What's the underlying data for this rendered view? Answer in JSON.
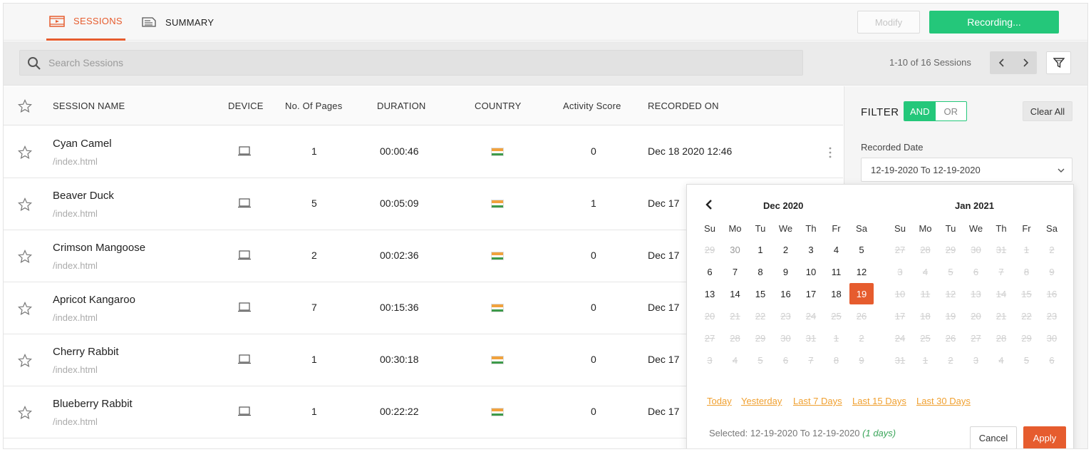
{
  "tabs": [
    {
      "label": "SESSIONS",
      "icon": "video-icon",
      "active": true
    },
    {
      "label": "SUMMARY",
      "icon": "document-icon",
      "active": false
    }
  ],
  "toolbar": {
    "modify_label": "Modify",
    "recording_label": "Recording..."
  },
  "search": {
    "placeholder": "Search Sessions"
  },
  "pagination": {
    "count_text": "1-10 of 16 Sessions",
    "prev": "‹",
    "next": "›"
  },
  "table": {
    "headers": {
      "name": "SESSION NAME",
      "device": "DEVICE",
      "pages": "No. Of Pages",
      "duration": "DURATION",
      "country": "COUNTRY",
      "score": "Activity Score",
      "recorded": "RECORDED ON"
    },
    "rows": [
      {
        "name": "Cyan Camel",
        "path": "/index.html",
        "pages": "1",
        "duration": "00:00:46",
        "score": "0",
        "recorded": "Dec 18 2020 12:46"
      },
      {
        "name": "Beaver Duck",
        "path": "/index.html",
        "pages": "5",
        "duration": "00:05:09",
        "score": "1",
        "recorded": "Dec 17"
      },
      {
        "name": "Crimson Mangoose",
        "path": "/index.html",
        "pages": "2",
        "duration": "00:02:36",
        "score": "0",
        "recorded": "Dec 17"
      },
      {
        "name": "Apricot Kangaroo",
        "path": "/index.html",
        "pages": "7",
        "duration": "00:15:36",
        "score": "0",
        "recorded": "Dec 17"
      },
      {
        "name": "Cherry Rabbit",
        "path": "/index.html",
        "pages": "1",
        "duration": "00:30:18",
        "score": "0",
        "recorded": "Dec 17"
      },
      {
        "name": "Blueberry Rabbit",
        "path": "/index.html",
        "pages": "1",
        "duration": "00:22:22",
        "score": "0",
        "recorded": "Dec 17"
      }
    ]
  },
  "filter": {
    "title": "FILTER",
    "and_label": "AND",
    "or_label": "OR",
    "clear_label": "Clear All",
    "recorded_date_label": "Recorded Date",
    "recorded_date_value": "12-19-2020 To 12-19-2020"
  },
  "datepicker": {
    "left_month": "Dec 2020",
    "right_month": "Jan 2021",
    "weekdays": [
      "Su",
      "Mo",
      "Tu",
      "We",
      "Th",
      "Fr",
      "Sa"
    ],
    "left_weeks": [
      [
        [
          "29",
          "off"
        ],
        [
          "30",
          "muted"
        ],
        [
          "1",
          ""
        ],
        [
          "2",
          ""
        ],
        [
          "3",
          ""
        ],
        [
          "4",
          ""
        ],
        [
          "5",
          ""
        ]
      ],
      [
        [
          "6",
          ""
        ],
        [
          "7",
          ""
        ],
        [
          "8",
          ""
        ],
        [
          "9",
          ""
        ],
        [
          "10",
          ""
        ],
        [
          "11",
          ""
        ],
        [
          "12",
          ""
        ]
      ],
      [
        [
          "13",
          ""
        ],
        [
          "14",
          ""
        ],
        [
          "15",
          ""
        ],
        [
          "16",
          ""
        ],
        [
          "17",
          ""
        ],
        [
          "18",
          ""
        ],
        [
          "19",
          "sel"
        ]
      ],
      [
        [
          "20",
          "off"
        ],
        [
          "21",
          "off"
        ],
        [
          "22",
          "off"
        ],
        [
          "23",
          "off"
        ],
        [
          "24",
          "off"
        ],
        [
          "25",
          "off"
        ],
        [
          "26",
          "off"
        ]
      ],
      [
        [
          "27",
          "off"
        ],
        [
          "28",
          "off"
        ],
        [
          "29",
          "off"
        ],
        [
          "30",
          "off"
        ],
        [
          "31",
          "off"
        ],
        [
          "1",
          "off"
        ],
        [
          "2",
          "off"
        ]
      ],
      [
        [
          "3",
          "off"
        ],
        [
          "4",
          "off"
        ],
        [
          "5",
          "off"
        ],
        [
          "6",
          "off"
        ],
        [
          "7",
          "off"
        ],
        [
          "8",
          "off"
        ],
        [
          "9",
          "off"
        ]
      ]
    ],
    "right_weeks": [
      [
        [
          "27",
          "off"
        ],
        [
          "28",
          "off"
        ],
        [
          "29",
          "off"
        ],
        [
          "30",
          "off"
        ],
        [
          "31",
          "off"
        ],
        [
          "1",
          "off"
        ],
        [
          "2",
          "off"
        ]
      ],
      [
        [
          "3",
          "off"
        ],
        [
          "4",
          "off"
        ],
        [
          "5",
          "off"
        ],
        [
          "6",
          "off"
        ],
        [
          "7",
          "off"
        ],
        [
          "8",
          "off"
        ],
        [
          "9",
          "off"
        ]
      ],
      [
        [
          "10",
          "off"
        ],
        [
          "11",
          "off"
        ],
        [
          "12",
          "off"
        ],
        [
          "13",
          "off"
        ],
        [
          "14",
          "off"
        ],
        [
          "15",
          "off"
        ],
        [
          "16",
          "off"
        ]
      ],
      [
        [
          "17",
          "off"
        ],
        [
          "18",
          "off"
        ],
        [
          "19",
          "off"
        ],
        [
          "20",
          "off"
        ],
        [
          "21",
          "off"
        ],
        [
          "22",
          "off"
        ],
        [
          "23",
          "off"
        ]
      ],
      [
        [
          "24",
          "off"
        ],
        [
          "25",
          "off"
        ],
        [
          "26",
          "off"
        ],
        [
          "27",
          "off"
        ],
        [
          "28",
          "off"
        ],
        [
          "29",
          "off"
        ],
        [
          "30",
          "off"
        ]
      ],
      [
        [
          "31",
          "off"
        ],
        [
          "1",
          "off"
        ],
        [
          "2",
          "off"
        ],
        [
          "3",
          "off"
        ],
        [
          "4",
          "off"
        ],
        [
          "5",
          "off"
        ],
        [
          "6",
          "off"
        ]
      ]
    ],
    "quick_ranges": [
      "Today",
      "Yesterday",
      "Last 7 Days",
      "Last 15 Days",
      "Last 30 Days"
    ],
    "selected_prefix": "Selected: 12-19-2020 To 12-19-2020",
    "selected_days": "(1 days)",
    "cancel_label": "Cancel",
    "apply_label": "Apply"
  },
  "colors": {
    "accent": "#e65c2e",
    "success": "#24c77a",
    "link": "#f0a030"
  }
}
